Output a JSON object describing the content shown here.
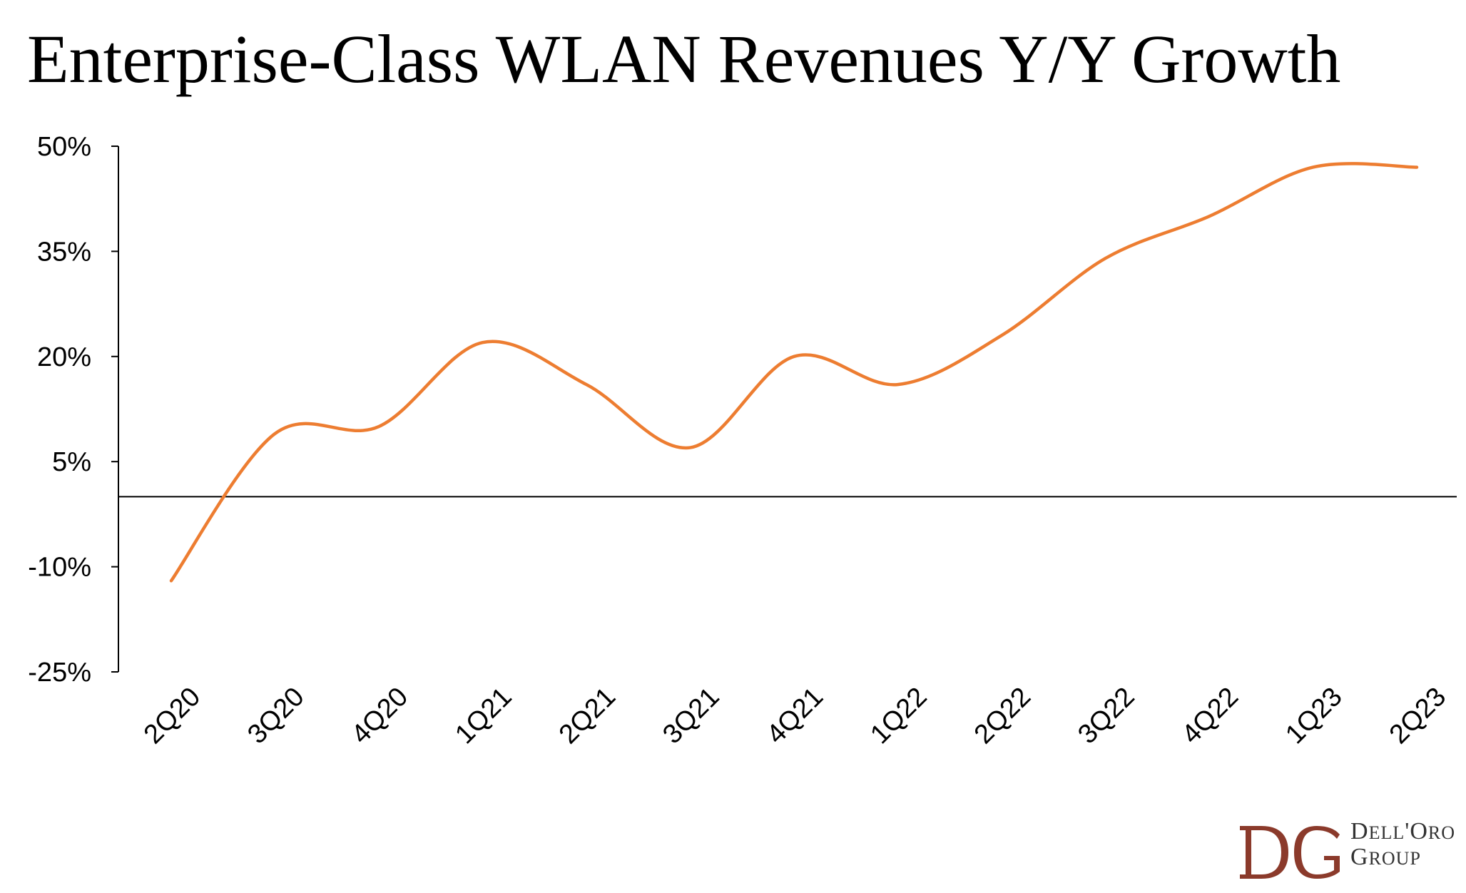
{
  "title": "Enterprise-Class WLAN Revenues Y/Y Growth",
  "chart_data": {
    "type": "line",
    "title": "Enterprise-Class WLAN Revenues Y/Y Growth",
    "xlabel": "",
    "ylabel": "",
    "categories": [
      "2Q20",
      "3Q20",
      "4Q20",
      "1Q21",
      "2Q21",
      "3Q21",
      "4Q21",
      "1Q22",
      "2Q22",
      "3Q22",
      "4Q22",
      "1Q23",
      "2Q23"
    ],
    "series": [
      {
        "name": "",
        "color": "#ED7D31",
        "values": [
          -12,
          9,
          10,
          22,
          16,
          7,
          20,
          16,
          23,
          34,
          40,
          47,
          47
        ]
      }
    ],
    "ylim": [
      -25,
      50
    ],
    "y_ticks": [
      "50%",
      "35%",
      "20%",
      "5%",
      "-10%",
      "-25%"
    ],
    "y_tick_values": [
      50,
      35,
      20,
      5,
      -10,
      -25
    ],
    "zero_line": true,
    "grid": false,
    "legend": "none"
  },
  "logo": {
    "monogram": "DG",
    "line1_a": "D",
    "line1_b": "ELL",
    "line1_c": "'O",
    "line1_d": "RO",
    "line2_a": "G",
    "line2_b": "ROUP",
    "color": "#8B3A2B"
  }
}
